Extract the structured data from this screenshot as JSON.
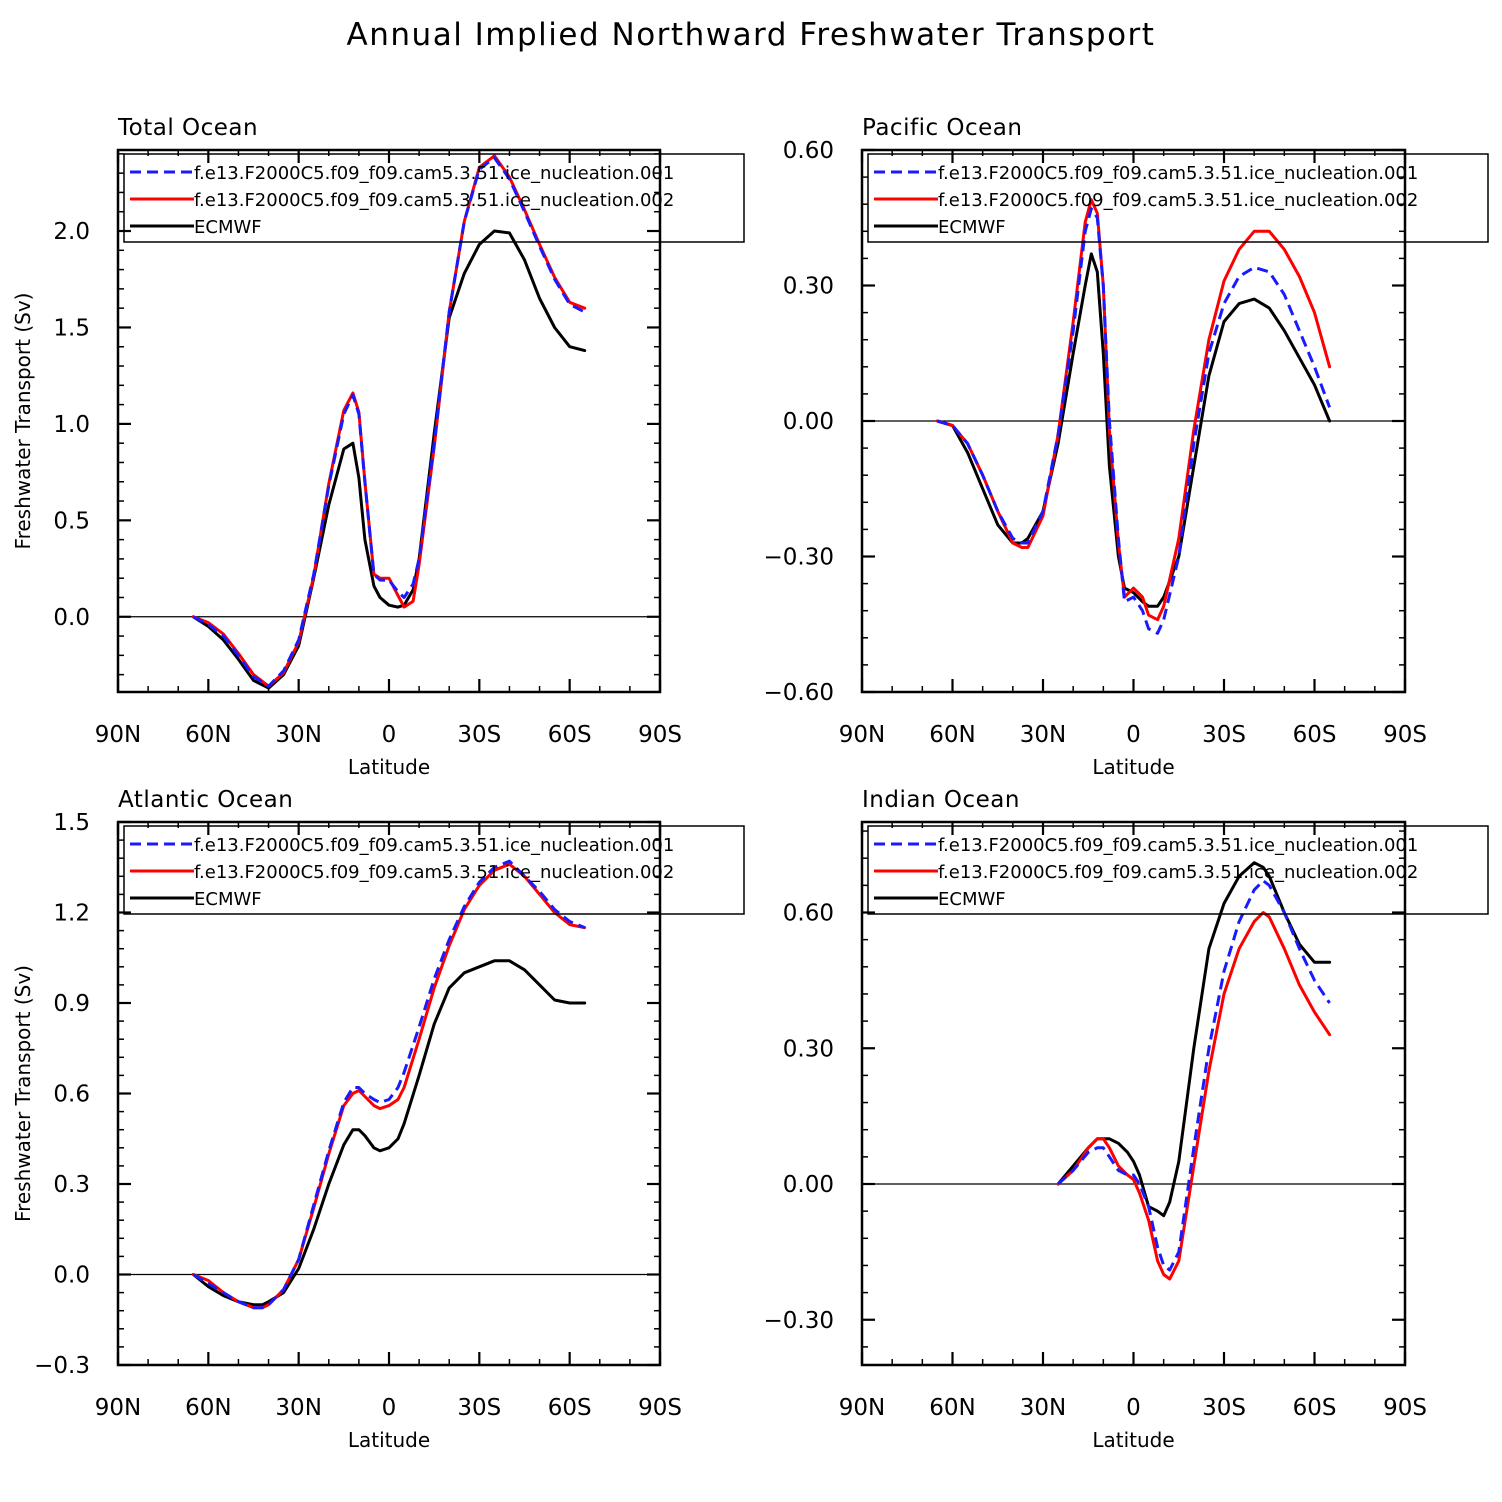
{
  "title": "Annual Implied Northward Freshwater Transport",
  "colors": {
    "run001": "#1a1aff",
    "run002": "#ff0000",
    "ecmwf": "#000000"
  },
  "chart_data": [
    {
      "type": "line",
      "title": "Total Ocean",
      "xlabel": "Latitude",
      "ylabel": "Freshwater Transport (Sv)",
      "xlim": [
        90,
        -90
      ],
      "x_ticks": [
        90,
        60,
        30,
        0,
        -30,
        -60,
        -90
      ],
      "x_tick_labels": [
        "90N",
        "60N",
        "30N",
        "0",
        "30S",
        "60S",
        "90S"
      ],
      "ylim": [
        -0.39,
        2.42
      ],
      "y_ticks": [
        0.0,
        0.5,
        1.0,
        1.5,
        2.0
      ],
      "y_tick_labels": [
        "0.0",
        "0.5",
        "1.0",
        "1.5",
        "2.0"
      ],
      "zero_line": true,
      "legend": [
        "f.e13.F2000C5.f09_f09.cam5.3.51.ice_nucleation.001",
        "f.e13.F2000C5.f09_f09.cam5.3.51.ice_nucleation.002",
        "ECMWF"
      ],
      "series": [
        {
          "name": "f.e13.F2000C5.f09_f09.cam5.3.51.ice_nucleation.001",
          "style": "dashed",
          "color": "#1a1aff",
          "x": [
            65,
            60,
            55,
            50,
            45,
            40,
            35,
            30,
            25,
            20,
            15,
            12,
            10,
            8,
            5,
            3,
            0,
            -3,
            -5,
            -8,
            -10,
            -15,
            -20,
            -25,
            -30,
            -35,
            -40,
            -45,
            -50,
            -55,
            -60,
            -65
          ],
          "y": [
            0.0,
            -0.04,
            -0.1,
            -0.2,
            -0.31,
            -0.36,
            -0.28,
            -0.12,
            0.22,
            0.68,
            1.05,
            1.15,
            1.05,
            0.7,
            0.22,
            0.19,
            0.19,
            0.13,
            0.1,
            0.17,
            0.3,
            0.9,
            1.58,
            2.05,
            2.32,
            2.38,
            2.27,
            2.1,
            1.92,
            1.75,
            1.62,
            1.58
          ]
        },
        {
          "name": "f.e13.F2000C5.f09_f09.cam5.3.51.ice_nucleation.002",
          "style": "solid",
          "color": "#ff0000",
          "x": [
            65,
            60,
            55,
            50,
            45,
            40,
            35,
            30,
            25,
            20,
            15,
            12,
            10,
            8,
            5,
            3,
            0,
            -3,
            -5,
            -8,
            -10,
            -15,
            -20,
            -25,
            -30,
            -35,
            -40,
            -45,
            -50,
            -55,
            -60,
            -65
          ],
          "y": [
            0.0,
            -0.03,
            -0.09,
            -0.19,
            -0.3,
            -0.36,
            -0.29,
            -0.13,
            0.21,
            0.69,
            1.07,
            1.16,
            1.06,
            0.7,
            0.22,
            0.2,
            0.2,
            0.11,
            0.05,
            0.08,
            0.27,
            0.88,
            1.58,
            2.05,
            2.33,
            2.39,
            2.28,
            2.11,
            1.93,
            1.76,
            1.63,
            1.6
          ]
        },
        {
          "name": "ECMWF",
          "style": "solid",
          "color": "#000000",
          "x": [
            65,
            60,
            55,
            50,
            45,
            40,
            35,
            30,
            25,
            20,
            15,
            12,
            10,
            8,
            5,
            3,
            0,
            -3,
            -5,
            -8,
            -10,
            -15,
            -20,
            -25,
            -30,
            -35,
            -40,
            -45,
            -50,
            -55,
            -60,
            -65
          ],
          "y": [
            0.0,
            -0.05,
            -0.12,
            -0.22,
            -0.33,
            -0.37,
            -0.3,
            -0.15,
            0.2,
            0.58,
            0.87,
            0.9,
            0.72,
            0.4,
            0.16,
            0.1,
            0.06,
            0.05,
            0.06,
            0.14,
            0.3,
            0.95,
            1.55,
            1.78,
            1.93,
            2.0,
            1.99,
            1.85,
            1.65,
            1.5,
            1.4,
            1.38
          ]
        }
      ]
    },
    {
      "type": "line",
      "title": "Pacific Ocean",
      "xlabel": "Latitude",
      "ylabel": "",
      "xlim": [
        90,
        -90
      ],
      "x_ticks": [
        90,
        60,
        30,
        0,
        -30,
        -60,
        -90
      ],
      "x_tick_labels": [
        "90N",
        "60N",
        "30N",
        "0",
        "30S",
        "60S",
        "90S"
      ],
      "ylim": [
        -0.6,
        0.6
      ],
      "y_ticks": [
        -0.6,
        -0.3,
        0.0,
        0.3,
        0.6
      ],
      "y_tick_labels": [
        "−0.60",
        "−0.30",
        "0.00",
        "0.30",
        "0.60"
      ],
      "zero_line": true,
      "legend": [
        "f.e13.F2000C5.f09_f09.cam5.3.51.ice_nucleation.001",
        "f.e13.F2000C5.f09_f09.cam5.3.51.ice_nucleation.002",
        "ECMWF"
      ],
      "series": [
        {
          "name": "f.e13.F2000C5.f09_f09.cam5.3.51.ice_nucleation.001",
          "style": "dashed",
          "color": "#1a1aff",
          "x": [
            65,
            60,
            55,
            50,
            45,
            40,
            37,
            35,
            30,
            25,
            20,
            16,
            14,
            12,
            10,
            8,
            5,
            3,
            0,
            -3,
            -5,
            -8,
            -10,
            -15,
            -20,
            -25,
            -30,
            -35,
            -40,
            -45,
            -50,
            -55,
            -60,
            -65
          ],
          "y": [
            0.0,
            -0.01,
            -0.05,
            -0.12,
            -0.2,
            -0.26,
            -0.27,
            -0.27,
            -0.2,
            -0.03,
            0.2,
            0.42,
            0.47,
            0.45,
            0.3,
            0.0,
            -0.26,
            -0.4,
            -0.39,
            -0.42,
            -0.46,
            -0.47,
            -0.44,
            -0.3,
            -0.05,
            0.15,
            0.26,
            0.32,
            0.34,
            0.33,
            0.28,
            0.2,
            0.12,
            0.03
          ]
        },
        {
          "name": "f.e13.F2000C5.f09_f09.cam5.3.51.ice_nucleation.002",
          "style": "solid",
          "color": "#ff0000",
          "x": [
            65,
            60,
            55,
            50,
            45,
            40,
            37,
            35,
            30,
            25,
            20,
            16,
            14,
            12,
            10,
            8,
            5,
            3,
            0,
            -3,
            -5,
            -8,
            -10,
            -15,
            -20,
            -25,
            -30,
            -35,
            -40,
            -45,
            -50,
            -55,
            -60,
            -65
          ],
          "y": [
            0.0,
            -0.01,
            -0.05,
            -0.12,
            -0.2,
            -0.27,
            -0.28,
            -0.28,
            -0.21,
            -0.03,
            0.22,
            0.44,
            0.49,
            0.46,
            0.3,
            -0.02,
            -0.27,
            -0.39,
            -0.37,
            -0.39,
            -0.43,
            -0.44,
            -0.41,
            -0.26,
            -0.02,
            0.18,
            0.31,
            0.38,
            0.42,
            0.42,
            0.38,
            0.32,
            0.24,
            0.12
          ]
        },
        {
          "name": "ECMWF",
          "style": "solid",
          "color": "#000000",
          "x": [
            65,
            60,
            55,
            50,
            45,
            40,
            37,
            35,
            30,
            25,
            20,
            16,
            14,
            12,
            10,
            8,
            5,
            3,
            0,
            -3,
            -5,
            -8,
            -10,
            -15,
            -20,
            -25,
            -30,
            -35,
            -40,
            -45,
            -50,
            -55,
            -60,
            -65
          ],
          "y": [
            0.0,
            -0.01,
            -0.07,
            -0.15,
            -0.23,
            -0.27,
            -0.27,
            -0.26,
            -0.2,
            -0.05,
            0.15,
            0.3,
            0.37,
            0.33,
            0.15,
            -0.1,
            -0.3,
            -0.37,
            -0.38,
            -0.4,
            -0.41,
            -0.41,
            -0.39,
            -0.3,
            -0.1,
            0.1,
            0.22,
            0.26,
            0.27,
            0.25,
            0.2,
            0.14,
            0.08,
            0.0
          ]
        }
      ]
    },
    {
      "type": "line",
      "title": "Atlantic Ocean",
      "xlabel": "Latitude",
      "ylabel": "Freshwater Transport (Sv)",
      "xlim": [
        90,
        -90
      ],
      "x_ticks": [
        90,
        60,
        30,
        0,
        -30,
        -60,
        -90
      ],
      "x_tick_labels": [
        "90N",
        "60N",
        "30N",
        "0",
        "30S",
        "60S",
        "90S"
      ],
      "ylim": [
        -0.3,
        1.5
      ],
      "y_ticks": [
        -0.3,
        0.0,
        0.3,
        0.6,
        0.9,
        1.2,
        1.5
      ],
      "y_tick_labels": [
        "−0.3",
        "0.0",
        "0.3",
        "0.6",
        "0.9",
        "1.2",
        "1.5"
      ],
      "zero_line": true,
      "legend": [
        "f.e13.F2000C5.f09_f09.cam5.3.51.ice_nucleation.001",
        "f.e13.F2000C5.f09_f09.cam5.3.51.ice_nucleation.002",
        "ECMWF"
      ],
      "series": [
        {
          "name": "f.e13.F2000C5.f09_f09.cam5.3.51.ice_nucleation.001",
          "style": "dashed",
          "color": "#1a1aff",
          "x": [
            65,
            60,
            55,
            50,
            45,
            42,
            40,
            35,
            30,
            25,
            20,
            15,
            12,
            10,
            8,
            5,
            3,
            0,
            -3,
            -5,
            -10,
            -15,
            -20,
            -25,
            -30,
            -35,
            -40,
            -45,
            -50,
            -55,
            -60,
            -65
          ],
          "y": [
            0.0,
            -0.03,
            -0.06,
            -0.09,
            -0.11,
            -0.11,
            -0.1,
            -0.05,
            0.05,
            0.23,
            0.41,
            0.57,
            0.62,
            0.62,
            0.6,
            0.58,
            0.57,
            0.58,
            0.62,
            0.67,
            0.82,
            0.98,
            1.11,
            1.22,
            1.3,
            1.35,
            1.37,
            1.32,
            1.27,
            1.21,
            1.17,
            1.15
          ]
        },
        {
          "name": "f.e13.F2000C5.f09_f09.cam5.3.51.ice_nucleation.002",
          "style": "solid",
          "color": "#ff0000",
          "x": [
            65,
            60,
            55,
            50,
            45,
            42,
            40,
            35,
            30,
            25,
            20,
            15,
            12,
            10,
            8,
            5,
            3,
            0,
            -3,
            -5,
            -10,
            -15,
            -20,
            -25,
            -30,
            -35,
            -40,
            -45,
            -50,
            -55,
            -60,
            -65
          ],
          "y": [
            0.0,
            -0.02,
            -0.06,
            -0.09,
            -0.11,
            -0.11,
            -0.1,
            -0.05,
            0.05,
            0.22,
            0.4,
            0.56,
            0.6,
            0.61,
            0.59,
            0.56,
            0.55,
            0.56,
            0.58,
            0.62,
            0.78,
            0.95,
            1.09,
            1.21,
            1.29,
            1.34,
            1.36,
            1.32,
            1.26,
            1.2,
            1.16,
            1.15
          ]
        },
        {
          "name": "ECMWF",
          "style": "solid",
          "color": "#000000",
          "x": [
            65,
            60,
            55,
            50,
            45,
            42,
            40,
            35,
            30,
            25,
            20,
            15,
            12,
            10,
            8,
            5,
            3,
            0,
            -3,
            -5,
            -10,
            -15,
            -20,
            -25,
            -30,
            -35,
            -40,
            -45,
            -50,
            -55,
            -60,
            -65
          ],
          "y": [
            0.0,
            -0.04,
            -0.07,
            -0.09,
            -0.1,
            -0.1,
            -0.09,
            -0.06,
            0.02,
            0.15,
            0.3,
            0.43,
            0.48,
            0.48,
            0.46,
            0.42,
            0.41,
            0.42,
            0.45,
            0.5,
            0.66,
            0.83,
            0.95,
            1.0,
            1.02,
            1.04,
            1.04,
            1.01,
            0.96,
            0.91,
            0.9,
            0.9
          ]
        }
      ]
    },
    {
      "type": "line",
      "title": "Indian Ocean",
      "xlabel": "Latitude",
      "ylabel": "",
      "xlim": [
        90,
        -90
      ],
      "x_ticks": [
        90,
        60,
        30,
        0,
        -30,
        -60,
        -90
      ],
      "x_tick_labels": [
        "90N",
        "60N",
        "30N",
        "0",
        "30S",
        "60S",
        "90S"
      ],
      "ylim": [
        -0.4,
        0.8
      ],
      "y_ticks": [
        -0.3,
        0.0,
        0.3,
        0.6
      ],
      "y_tick_labels": [
        "−0.30",
        "0.00",
        "0.30",
        "0.60"
      ],
      "zero_line": true,
      "legend": [
        "f.e13.F2000C5.f09_f09.cam5.3.51.ice_nucleation.001",
        "f.e13.F2000C5.f09_f09.cam5.3.51.ice_nucleation.002",
        "ECMWF"
      ],
      "series": [
        {
          "name": "f.e13.F2000C5.f09_f09.cam5.3.51.ice_nucleation.001",
          "style": "dashed",
          "color": "#1a1aff",
          "x": [
            25,
            20,
            15,
            12,
            10,
            8,
            5,
            2,
            0,
            -2,
            -5,
            -8,
            -10,
            -12,
            -15,
            -20,
            -25,
            -30,
            -35,
            -40,
            -43,
            -45,
            -50,
            -55,
            -60,
            -65
          ],
          "y": [
            0.0,
            0.03,
            0.07,
            0.08,
            0.08,
            0.06,
            0.03,
            0.02,
            0.02,
            0.0,
            -0.05,
            -0.14,
            -0.18,
            -0.19,
            -0.15,
            0.08,
            0.3,
            0.47,
            0.58,
            0.65,
            0.67,
            0.66,
            0.6,
            0.52,
            0.45,
            0.4
          ]
        },
        {
          "name": "f.e13.F2000C5.f09_f09.cam5.3.51.ice_nucleation.002",
          "style": "solid",
          "color": "#ff0000",
          "x": [
            25,
            20,
            15,
            12,
            10,
            8,
            5,
            2,
            0,
            -2,
            -5,
            -8,
            -10,
            -12,
            -15,
            -20,
            -25,
            -30,
            -35,
            -40,
            -43,
            -45,
            -50,
            -55,
            -60,
            -65
          ],
          "y": [
            0.0,
            0.03,
            0.08,
            0.1,
            0.1,
            0.08,
            0.04,
            0.02,
            0.01,
            -0.02,
            -0.08,
            -0.17,
            -0.2,
            -0.21,
            -0.17,
            0.04,
            0.25,
            0.42,
            0.52,
            0.58,
            0.6,
            0.59,
            0.52,
            0.44,
            0.38,
            0.33
          ]
        },
        {
          "name": "ECMWF",
          "style": "solid",
          "color": "#000000",
          "x": [
            25,
            20,
            15,
            12,
            10,
            8,
            5,
            2,
            0,
            -2,
            -5,
            -8,
            -10,
            -12,
            -15,
            -20,
            -25,
            -30,
            -35,
            -40,
            -43,
            -45,
            -50,
            -55,
            -60,
            -65
          ],
          "y": [
            0.0,
            0.04,
            0.08,
            0.1,
            0.1,
            0.1,
            0.09,
            0.07,
            0.05,
            0.02,
            -0.05,
            -0.06,
            -0.07,
            -0.04,
            0.05,
            0.3,
            0.52,
            0.62,
            0.68,
            0.71,
            0.7,
            0.68,
            0.6,
            0.53,
            0.49,
            0.49
          ]
        }
      ]
    }
  ]
}
